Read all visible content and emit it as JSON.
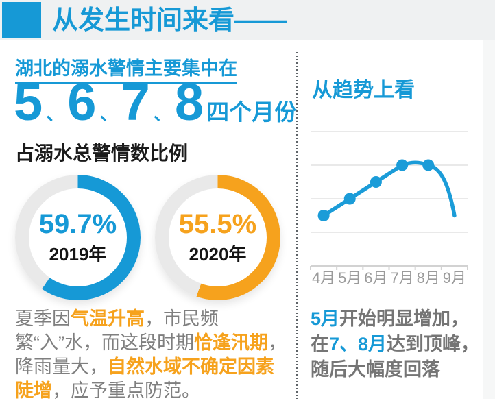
{
  "colors": {
    "blue": "#1699d6",
    "orange": "#f6a21d",
    "donut_track": "#e9e9e9",
    "gray_text": "#7f7f7f",
    "band_bg": "#eff1f2"
  },
  "header": {
    "title": "从发生时间来看——"
  },
  "left": {
    "heading": "湖北的溺水警情主要集中在",
    "months_big": [
      "5",
      "6",
      "7",
      "8"
    ],
    "months_separator": "、",
    "months_suffix": "四个月份",
    "section_label": "占溺水总警情数比例",
    "donuts": [
      {
        "percent": "59.7%",
        "value": 59.7,
        "year": "2019年",
        "color": "#1699d6"
      },
      {
        "percent": "55.5%",
        "value": 55.5,
        "year": "2020年",
        "color": "#f6a21d"
      }
    ],
    "paragraph_segments": [
      {
        "text": "夏季因",
        "style": "gray"
      },
      {
        "text": "气温升高",
        "style": "orange"
      },
      {
        "text": "，市民频繁“入”水，而这段时期",
        "style": "gray"
      },
      {
        "text": "恰逢汛期",
        "style": "orange"
      },
      {
        "text": "，降雨量大，",
        "style": "gray"
      },
      {
        "text": "自然水域不确定因素陡增",
        "style": "orange"
      },
      {
        "text": "，应予重点防范。",
        "style": "gray"
      }
    ]
  },
  "right": {
    "heading": "从趋势上看",
    "paragraph_segments": [
      {
        "text": "5月",
        "style": "blue"
      },
      {
        "text": "开始明显增加，在",
        "style": "gray"
      },
      {
        "text": "7、8月",
        "style": "blue"
      },
      {
        "text": "达到顶峰，随后大幅度回落",
        "style": "gray"
      }
    ]
  },
  "chart_data": {
    "type": "line",
    "title": "从趋势上看",
    "categories": [
      "4月",
      "5月",
      "6月",
      "7月",
      "8月",
      "9月"
    ],
    "values": [
      1.5,
      2.0,
      2.5,
      3.0,
      3.0,
      1.5
    ],
    "values_note": "no numeric axis labels visible; values estimated in gridline units (1 unit = 1 horizontal gridline interval, axis baseline = 0)",
    "xlabel": "",
    "ylabel": "",
    "ylim": [
      0,
      4
    ],
    "grid": "horizontal gridlines at 1,2,3,4 (unlabeled)",
    "legend": "none",
    "markers": [
      true,
      true,
      true,
      true,
      true,
      false
    ],
    "line_color": "#1b9cd8",
    "grid_color": "#e2e2e2",
    "axis_color": "#d2d2d2",
    "tick_label_color": "#9b9b9b"
  }
}
